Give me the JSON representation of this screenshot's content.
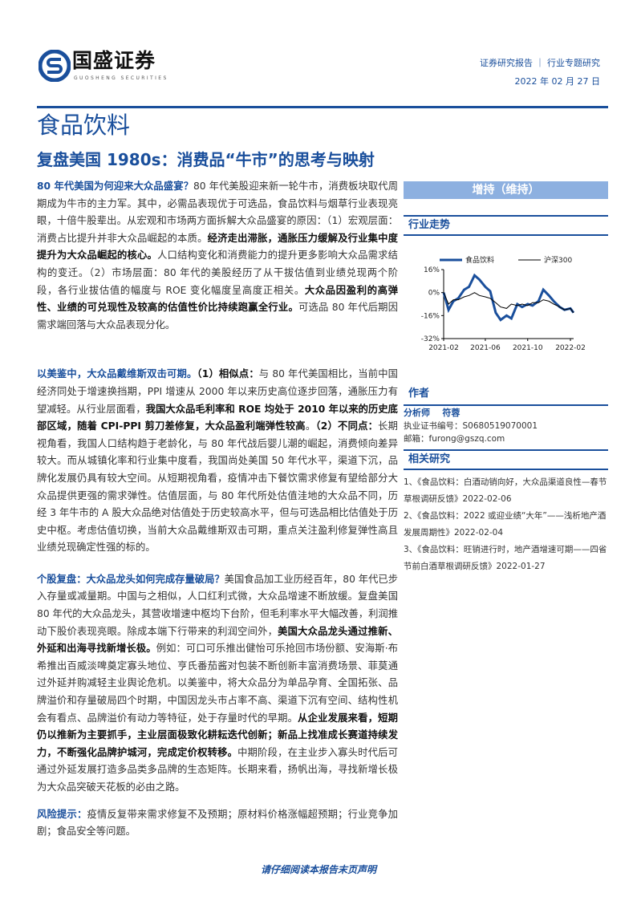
{
  "header": {
    "brand": "国盛证券",
    "brand_en": "GUOSHENG SECURITIES",
    "report_type": "证券研究报告 ｜ 行业专题研究",
    "date": "2022 年 02 月 27 日",
    "brand_color": "#1a4f9c"
  },
  "sector": "食品饮料",
  "title": "复盘美国 1980s：消费品“牛市”的思考与映射",
  "paragraphs": [
    [
      {
        "t": "80 年代美国为何迎来大众品盛宴？",
        "s": "lead"
      },
      {
        "t": "80 年代美股迎来新一轮牛市，消费板块取代周期成为牛市的主力军。其中，必需品表现优于可选品，食品饮料与烟草行业表现亮眼，十倍牛股辈出。从宏观和市场两方面拆解大众品盛宴的原因：（1）宏观层面：消费占比提升并非大众品崛起的本质。",
        "s": ""
      },
      {
        "t": "经济走出滞胀，通胀压力缓解及行业集中度提升为大众品崛起的核心。",
        "s": "bold"
      },
      {
        "t": "人口结构变化和消费能力的提升更多影响大众品需求结构的变迁。（2）市场层面：80 年代的美股经历了从干拔估值到业绩兑现两个阶段，各行业拔估值的幅度与 ROE 变化幅度呈高度正相关。",
        "s": ""
      },
      {
        "t": "大众品因盈利的高弹性、业绩的可兑现性及较高的估值性价比持续跑赢全行业。",
        "s": "bold"
      },
      {
        "t": "可选品 80 年代后期因需求端回落与大众品表现分化。",
        "s": ""
      }
    ],
    [
      {
        "t": "以美鉴中，大众品戴维斯双击可期。",
        "s": "lead"
      },
      {
        "t": "（1）相似点：",
        "s": "bold"
      },
      {
        "t": "与 80 年代美国相比，当前中国经济同处于增速换挡期，PPI 增速从 2000 年以来历史高位逐步回落，通胀压力有望减轻。从行业层面看，",
        "s": ""
      },
      {
        "t": "我国大众品毛利率和 ROE 均处于 2010 年以来的历史底部区域，随着 CPI-PPI 剪刀差修复，大众品盈利端弹性较高",
        "s": "bold"
      },
      {
        "t": "。",
        "s": ""
      },
      {
        "t": "（2）不同点：",
        "s": "bold"
      },
      {
        "t": "长期视角看，我国人口结构趋于老龄化，与 80 年代战后婴儿潮的崛起，消费倾向差异较大。而从城镇化率和行业集中度看，我国尚处美国 50 年代水平，渠道下沉，品牌化发展仍具有较大空间。从短期视角看，疫情冲击下餐饮需求修复有望给部分大众品提供更强的需求弹性。估值层面，与 80 年代所处估值洼地的大众品不同，历经 3 年牛市的 A 股大众品绝对估值处于历史较高水平，但与可选品相比估值处于历史中枢。考虑估值切换，当前大众品戴维斯双击可期，重点关注盈利修复弹性高且业绩兑现确定性强的标的。",
        "s": ""
      }
    ],
    [
      {
        "t": "个股复盘：大众品龙头如何完成存量破局？",
        "s": "lead"
      },
      {
        "t": "美国食品加工业历经百年，80 年代已步入存量或减量期。中国与之相似，人口红利式微，大众品增速不断放缓。复盘美国 80 年代的大众品龙头，其营收增速中枢均下台阶，但毛利率水平大幅改善，利润推动下股价表现亮眼。除成本端下行带来的利润空间外，",
        "s": ""
      },
      {
        "t": "美国大众品龙头通过推新、外延和出海寻找新增长极。",
        "s": "bold"
      },
      {
        "t": "例如：可口可乐推出健怡可乐抢回市场份额、安海斯·布希推出百威淡啤奠定寡头地位、亨氏番茄酱对包装不断创新丰富消费场景、菲莫通过外延并购减轻主业舆论危机。以美鉴中，将大众品分为单品孕育、全国拓张、品牌溢价和存量破局四个时期，中国因龙头市占率不高、渠道下沉有空间、结构性机会有看点、品牌溢价有动力等特征，处于存量时代的早期。",
        "s": ""
      },
      {
        "t": "从企业发展来看，短期仍以推新为主要抓手，主业层面极致化耕耘迭代创新；新品上找准成长赛道持续发力，不断强化品牌护城河，完成定价权转移。",
        "s": "bold"
      },
      {
        "t": "中期阶段，在主业步入寡头时代后可通过外延发展打造多品类多品牌的生态矩阵。长期来看，扬帆出海，寻找新增长极为大众品突破天花板的必由之路。",
        "s": ""
      }
    ],
    [
      {
        "t": "风险提示：",
        "s": "lead"
      },
      {
        "t": "疫情反复带来需求修复不及预期；原材料价格涨幅超预期；行业竞争加剧；食品安全等问题。",
        "s": ""
      }
    ]
  ],
  "rating": "增持（维持）",
  "trend": {
    "heading": "行业走势"
  },
  "chart_data": {
    "type": "line",
    "yticks": [
      "16%",
      "0%",
      "-16%",
      "-32%"
    ],
    "ylim": [
      -32,
      16
    ],
    "xticks": [
      "2021-02",
      "2021-06",
      "2021-10",
      "2022-02"
    ],
    "x": [
      "2021-02-01",
      "2021-02-15",
      "2021-03-01",
      "2021-03-15",
      "2021-04-01",
      "2021-04-15",
      "2021-05-01",
      "2021-05-15",
      "2021-06-01",
      "2021-06-15",
      "2021-07-01",
      "2021-07-15",
      "2021-08-01",
      "2021-08-15",
      "2021-09-01",
      "2021-09-15",
      "2021-10-01",
      "2021-10-15",
      "2021-11-01",
      "2021-11-15",
      "2021-12-01",
      "2021-12-15",
      "2022-01-01",
      "2022-01-15",
      "2022-02-01",
      "2022-02-10"
    ],
    "series": [
      {
        "name": "食品饮料",
        "color": "#1a4f9c",
        "values": [
          0,
          -12,
          -6,
          -4,
          2,
          4,
          12,
          9,
          4,
          1,
          -14,
          -19,
          -16,
          -18,
          -8,
          -10,
          -8,
          -9,
          -6,
          2,
          -2,
          -6,
          -10,
          -12,
          -11,
          -14
        ]
      },
      {
        "name": "沪深300",
        "color": "#000000",
        "values": [
          0,
          -8,
          -5,
          -5,
          -3,
          -2,
          0,
          -2,
          -3,
          -4,
          -7,
          -10,
          -11,
          -8,
          -9,
          -8,
          -9,
          -7,
          -7,
          -5,
          -6,
          -8,
          -10,
          -12,
          -11,
          -14
        ]
      }
    ]
  },
  "author": {
    "heading": "作者",
    "role": "分析师",
    "name": "符蓉",
    "license_label": "执业证书编号：",
    "license": "S0680519070001",
    "email_label": "邮箱：",
    "email": "furong@gszq.com"
  },
  "related": {
    "heading": "相关研究",
    "items": [
      "1、《食品饮料：白酒动销向好，大众品渠道良性—春节草根调研反馈》2022-02-06",
      "2、《食品饮料：2022 或迎业绩“大年”——浅析地产酒发展周期性》2022-02-04",
      "3、《食品饮料：旺销进行时，地产酒增速可期——四省节前白酒草根调研反馈》2022-01-27"
    ]
  },
  "footer": "请仔细阅读本报告末页声明"
}
